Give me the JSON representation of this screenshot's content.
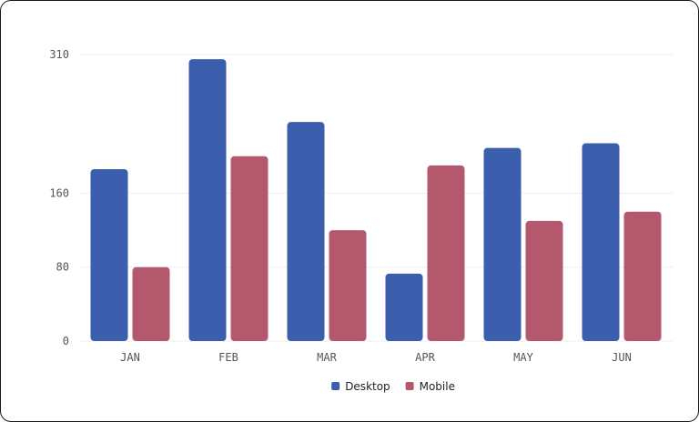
{
  "chart_data": {
    "type": "bar",
    "categories": [
      "JAN",
      "FEB",
      "MAR",
      "APR",
      "MAY",
      "JUN"
    ],
    "series": [
      {
        "name": "Desktop",
        "color": "#3c5fad",
        "values": [
          186,
          305,
          237,
          73,
          209,
          214
        ]
      },
      {
        "name": "Mobile",
        "color": "#b4586d",
        "values": [
          80,
          200,
          120,
          190,
          130,
          140
        ]
      }
    ],
    "y_ticks": [
      {
        "value": 0,
        "label": "0"
      },
      {
        "value": 80,
        "label": "80"
      },
      {
        "value": 160,
        "label": "160"
      },
      {
        "value": 310,
        "label": "310"
      }
    ],
    "ylim": [
      0,
      310
    ],
    "grid": true,
    "legend_position": "bottom-center"
  }
}
